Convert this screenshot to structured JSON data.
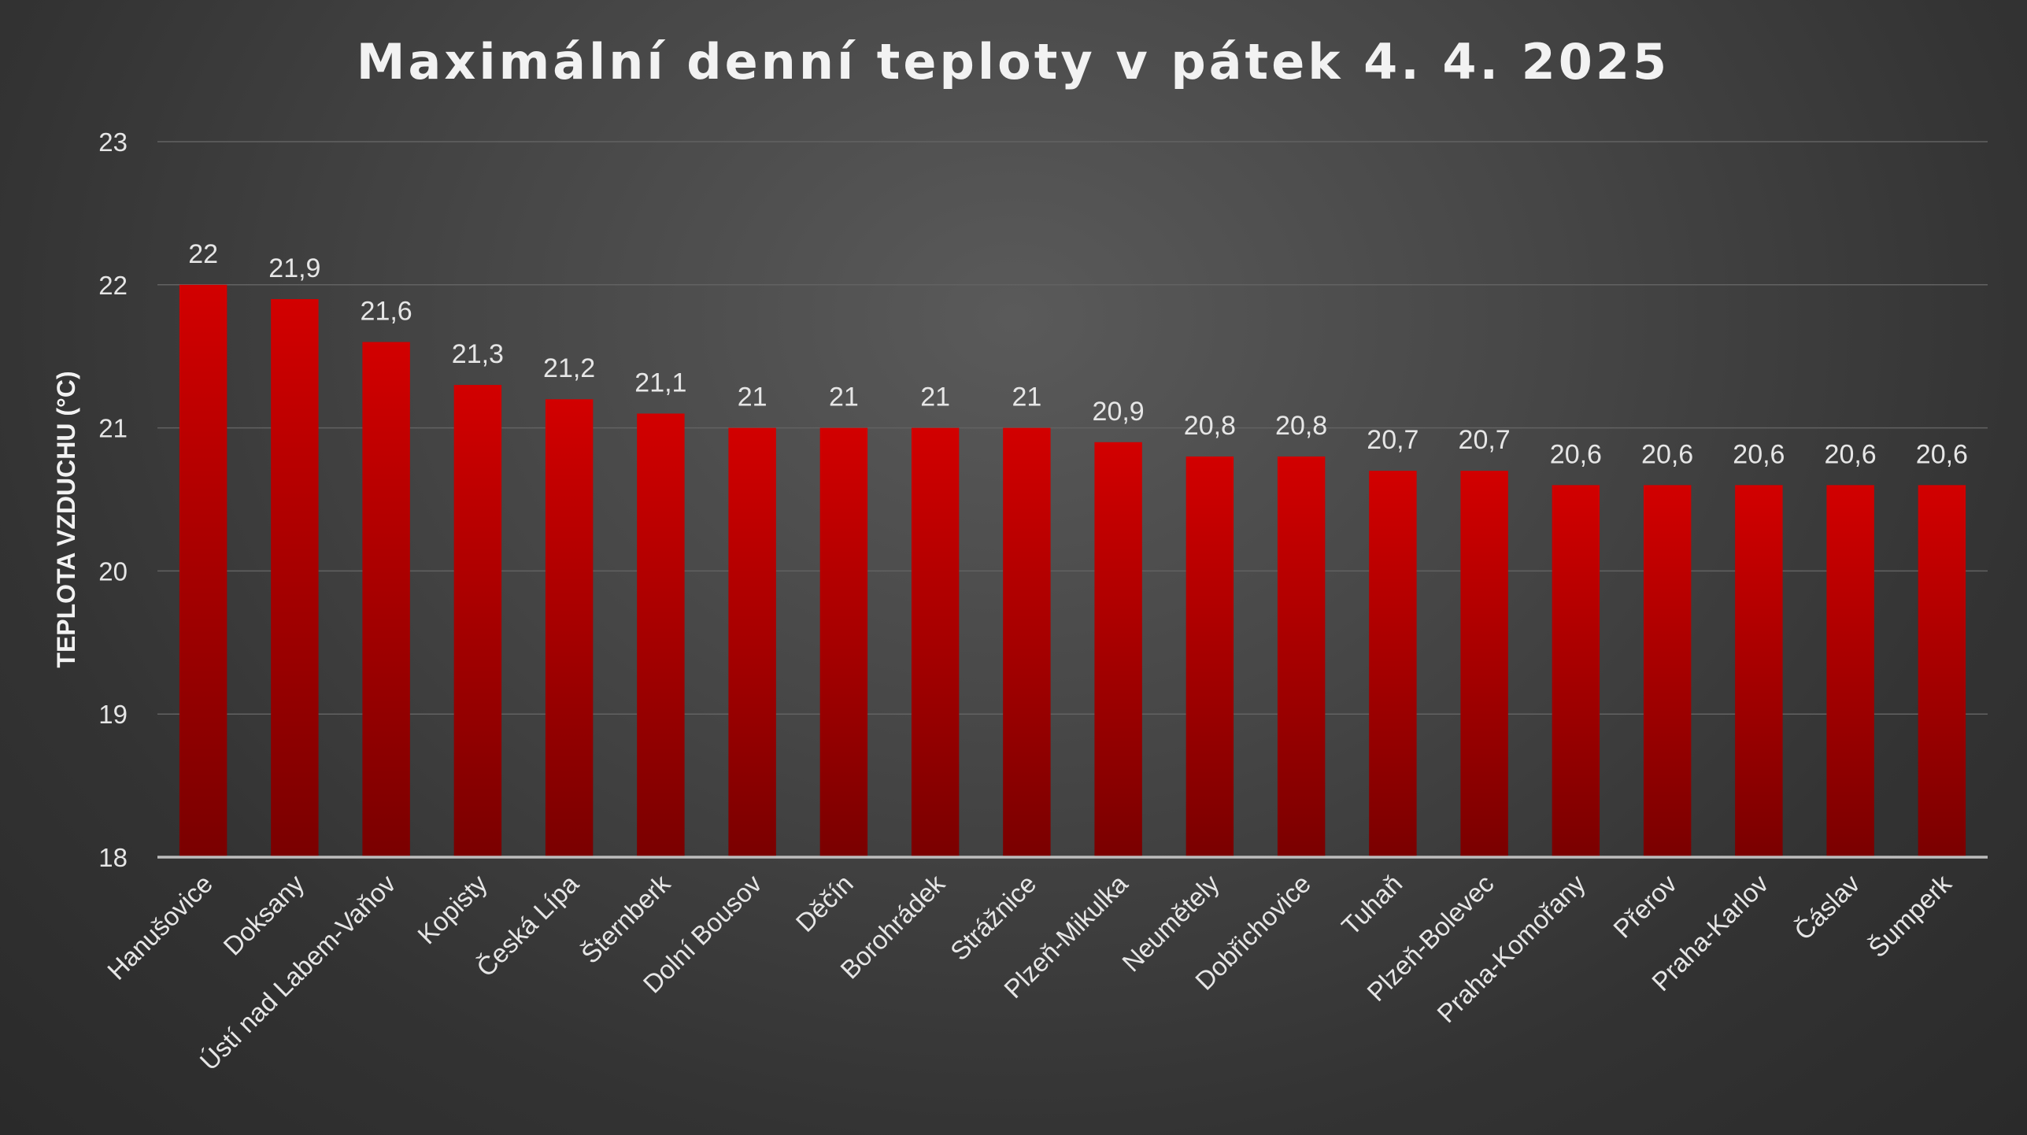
{
  "chart_data": {
    "type": "bar",
    "title": "Maximální denní teploty v pátek 4. 4. 2025",
    "xlabel": "",
    "ylabel": "TEPLOTA VZDUCHU (°C)",
    "ylim": [
      18,
      23
    ],
    "yticks": [
      "18",
      "19",
      "20",
      "21",
      "22",
      "23"
    ],
    "grid": true,
    "legend": "none",
    "categories": [
      "Hanušovice",
      "Doksany",
      "Ústí nad Labem-Vaňov",
      "Kopisty",
      "Česká Lípa",
      "Šternberk",
      "Dolní Bousov",
      "Děčín",
      "Borohrádek",
      "Strážnice",
      "Plzeň-Mikulka",
      "Neumětely",
      "Dobřichovice",
      "Tuhaň",
      "Plzeň-Bolevec",
      "Praha-Komořany",
      "Přerov",
      "Praha-Karlov",
      "Čáslav",
      "Šumperk"
    ],
    "values": [
      22,
      21.9,
      21.6,
      21.3,
      21.2,
      21.1,
      21,
      21,
      21,
      21,
      20.9,
      20.8,
      20.8,
      20.7,
      20.7,
      20.6,
      20.6,
      20.6,
      20.6,
      20.6
    ],
    "data_labels": [
      "22",
      "21,9",
      "21,6",
      "21,3",
      "21,2",
      "21,1",
      "21",
      "21",
      "21",
      "21",
      "20,9",
      "20,8",
      "20,8",
      "20,7",
      "20,7",
      "20,6",
      "20,6",
      "20,6",
      "20,6",
      "20,6"
    ],
    "colors": {
      "bar_top": "#d20000",
      "bar_bottom": "#7a0000",
      "background": "#3f3f3f"
    }
  }
}
